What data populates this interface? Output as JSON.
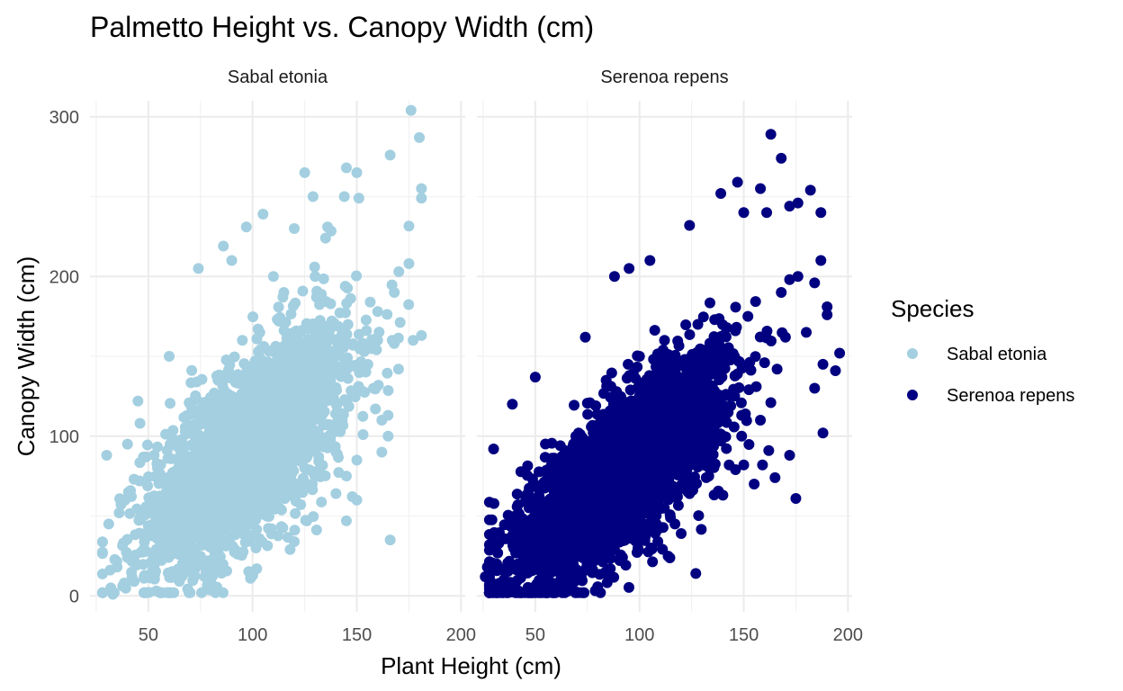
{
  "chart_data": {
    "type": "scatter",
    "title": "Palmetto Height vs. Canopy Width (cm)",
    "xlabel": "Plant Height (cm)",
    "ylabel": "Canopy Width (cm)",
    "xlim": [
      22,
      202
    ],
    "ylim": [
      -10,
      310
    ],
    "x_ticks": [
      50,
      100,
      150,
      200
    ],
    "y_ticks": [
      0,
      100,
      200,
      300
    ],
    "grid": true,
    "legend": {
      "title": "Species",
      "position": "right",
      "entries": [
        {
          "label": "Sabal etonia",
          "color": "#a3cfe0"
        },
        {
          "label": "Serenoa repens",
          "color": "#000080"
        }
      ]
    },
    "panels": [
      {
        "strip": "Sabal etonia",
        "color": "#a3cfe0",
        "cloud": {
          "n": 2500,
          "x_mean": 98,
          "x_sd": 24,
          "y_intercept": -8,
          "y_slope": 1.02,
          "y_sd": 28
        },
        "points": [
          [
            176,
            304
          ],
          [
            180,
            287
          ],
          [
            181,
            255
          ],
          [
            181,
            249
          ],
          [
            166,
            276
          ],
          [
            150,
            265
          ],
          [
            145,
            268
          ],
          [
            151,
            249
          ],
          [
            144,
            250
          ],
          [
            125,
            265
          ],
          [
            105,
            239
          ],
          [
            97,
            231
          ],
          [
            86,
            219
          ],
          [
            74,
            205
          ],
          [
            60,
            150
          ],
          [
            45,
            122
          ],
          [
            30,
            88
          ],
          [
            31,
            45
          ],
          [
            32,
            5
          ],
          [
            33,
            1
          ],
          [
            36,
            52
          ],
          [
            40,
            95
          ],
          [
            46,
            108
          ],
          [
            145,
            47
          ],
          [
            126,
            47
          ],
          [
            102,
            17
          ],
          [
            99,
            11
          ],
          [
            118,
            29
          ],
          [
            166,
            35
          ],
          [
            160,
            160
          ],
          [
            181,
            163
          ],
          [
            177,
            160
          ],
          [
            170,
            142
          ],
          [
            175,
            208
          ],
          [
            168,
            190
          ],
          [
            160,
            178
          ],
          [
            158,
            130
          ],
          [
            162,
            110
          ],
          [
            165,
            113
          ],
          [
            162,
            90
          ],
          [
            165,
            100
          ],
          [
            150,
            85
          ],
          [
            145,
            75
          ],
          [
            140,
            64
          ],
          [
            153,
            101
          ],
          [
            136,
            231
          ],
          [
            129,
            250
          ],
          [
            120,
            230
          ],
          [
            130,
            200
          ],
          [
            110,
            200
          ],
          [
            90,
            210
          ],
          [
            115,
            190
          ],
          [
            135,
            224
          ],
          [
            140,
            90
          ],
          [
            150,
            60
          ],
          [
            143,
            110
          ],
          [
            52,
            20
          ],
          [
            48,
            12
          ],
          [
            40,
            24
          ],
          [
            38,
            33
          ],
          [
            35,
            18
          ],
          [
            56,
            30
          ],
          [
            62,
            27
          ],
          [
            70,
            23
          ],
          [
            80,
            32
          ],
          [
            85,
            40
          ],
          [
            92,
            55
          ],
          [
            110,
            60
          ],
          [
            115,
            70
          ],
          [
            125,
            80
          ]
        ]
      },
      {
        "strip": "Serenoa repens",
        "color": "#000080",
        "cloud": {
          "n": 3500,
          "x_mean": 90,
          "x_sd": 24,
          "y_intercept": -18,
          "y_slope": 1.04,
          "y_sd": 22
        },
        "points": [
          [
            163,
            289
          ],
          [
            168,
            274
          ],
          [
            158,
            255
          ],
          [
            182,
            254
          ],
          [
            187,
            240
          ],
          [
            147,
            259
          ],
          [
            161,
            240
          ],
          [
            150,
            240
          ],
          [
            176,
            246
          ],
          [
            172,
            244
          ],
          [
            139,
            252
          ],
          [
            124,
            232
          ],
          [
            105,
            210
          ],
          [
            95,
            205
          ],
          [
            88,
            200
          ],
          [
            74,
            162
          ],
          [
            50,
            137
          ],
          [
            39,
            120
          ],
          [
            30,
            92
          ],
          [
            27,
            18
          ],
          [
            26,
            12
          ],
          [
            29,
            6
          ],
          [
            33,
            8
          ],
          [
            35,
            10
          ],
          [
            41,
            9
          ],
          [
            45,
            15
          ],
          [
            56,
            11
          ],
          [
            63,
            10
          ],
          [
            72,
            12
          ],
          [
            86,
            17
          ],
          [
            88,
            29
          ],
          [
            96,
            36
          ],
          [
            127,
            14
          ],
          [
            120,
            39
          ],
          [
            117,
            45
          ],
          [
            106,
            48
          ],
          [
            96,
            57
          ],
          [
            114,
            72
          ],
          [
            132,
            74
          ],
          [
            143,
            82
          ],
          [
            139,
            97
          ],
          [
            159,
            82
          ],
          [
            162,
            91
          ],
          [
            165,
            74
          ],
          [
            175,
            61
          ],
          [
            188,
            102
          ],
          [
            194,
            141
          ],
          [
            196,
            152
          ],
          [
            190,
            176
          ],
          [
            190,
            181
          ],
          [
            184,
            196
          ],
          [
            187,
            210
          ],
          [
            176,
            200
          ],
          [
            172,
            198
          ],
          [
            168,
            190
          ],
          [
            170,
            162
          ],
          [
            166,
            142
          ],
          [
            160,
            146
          ],
          [
            156,
            131
          ],
          [
            163,
            121
          ],
          [
            158,
            110
          ],
          [
            172,
            88
          ],
          [
            149,
            113
          ],
          [
            140,
            63
          ],
          [
            149,
            100
          ],
          [
            128,
            170
          ],
          [
            112,
            160
          ],
          [
            100,
            150
          ],
          [
            84,
            135
          ],
          [
            79,
            119
          ],
          [
            152,
            175
          ],
          [
            146,
            166
          ],
          [
            184,
            130
          ],
          [
            188,
            145
          ],
          [
            180,
            165
          ],
          [
            155,
            70
          ],
          [
            150,
            82
          ],
          [
            132,
            84
          ],
          [
            124,
            64
          ],
          [
            110,
            61
          ]
        ]
      }
    ]
  }
}
